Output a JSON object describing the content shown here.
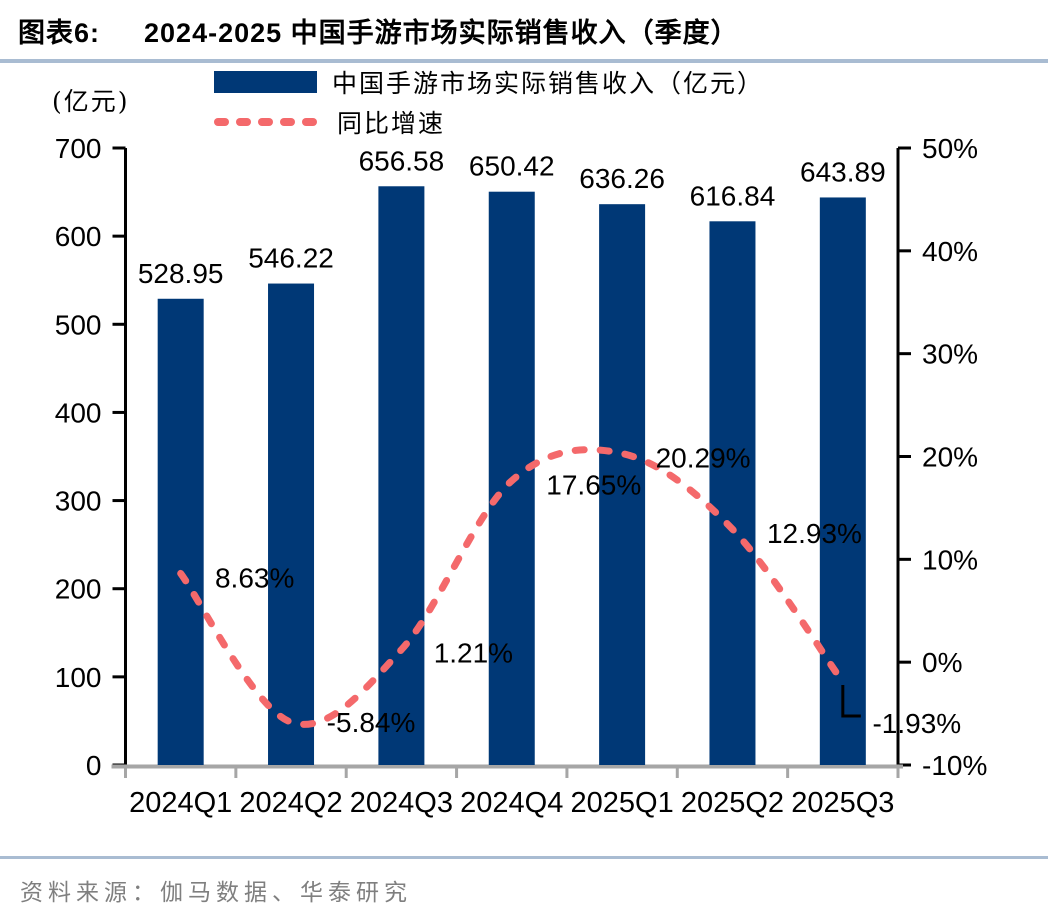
{
  "header": {
    "figure_label": "图表6:",
    "title": "2024-2025 中国手游市场实际销售收入（季度）"
  },
  "legend": {
    "items": [
      {
        "label": "中国手游市场实际销售收入（亿元）",
        "swatch": "bar"
      },
      {
        "label": "同比增速",
        "swatch": "dashed-line"
      }
    ]
  },
  "footer": {
    "source": "资料来源：伽马数据、华泰研究"
  },
  "colors": {
    "bar": "#003876",
    "line": "#F4696B",
    "divider": "#A9BCD2",
    "axis_gray": "#A6A6A6",
    "source_text": "#7F7F7F",
    "text": "#000000",
    "callout": "#000000"
  },
  "chart_data": {
    "type": "bar",
    "subtype": "bar-plus-line-combo",
    "title": "2024-2025 中国手游市场实际销售收入（季度）",
    "categories": [
      "2024Q1",
      "2024Q2",
      "2024Q3",
      "2024Q4",
      "2025Q1",
      "2025Q2",
      "2025Q3"
    ],
    "series": [
      {
        "name": "中国手游市场实际销售收入（亿元）",
        "type": "bar",
        "axis": "left",
        "values": [
          528.95,
          546.22,
          656.58,
          650.42,
          636.26,
          616.84,
          643.89
        ],
        "data_labels": [
          "528.95",
          "546.22",
          "656.58",
          "650.42",
          "636.26",
          "616.84",
          "643.89"
        ]
      },
      {
        "name": "同比增速",
        "type": "dashed-line",
        "axis": "right",
        "values": [
          8.63,
          -5.84,
          1.21,
          17.65,
          20.29,
          12.93,
          -1.93
        ],
        "data_labels": [
          "8.63%",
          "-5.84%",
          "1.21%",
          "17.65%",
          "20.29%",
          "12.93%",
          "-1.93%"
        ]
      }
    ],
    "left_axis": {
      "title": "(亿元)",
      "min": 0,
      "max": 700,
      "step": 100,
      "tick_labels": [
        "0",
        "100",
        "200",
        "300",
        "400",
        "500",
        "600",
        "700"
      ]
    },
    "right_axis": {
      "min": -10,
      "max": 50,
      "step": 10,
      "tick_labels": [
        "-10%",
        "0%",
        "10%",
        "20%",
        "30%",
        "40%",
        "50%"
      ]
    },
    "legend_position": "top",
    "grid": false,
    "last_point_has_black_elbow_callout": true
  }
}
